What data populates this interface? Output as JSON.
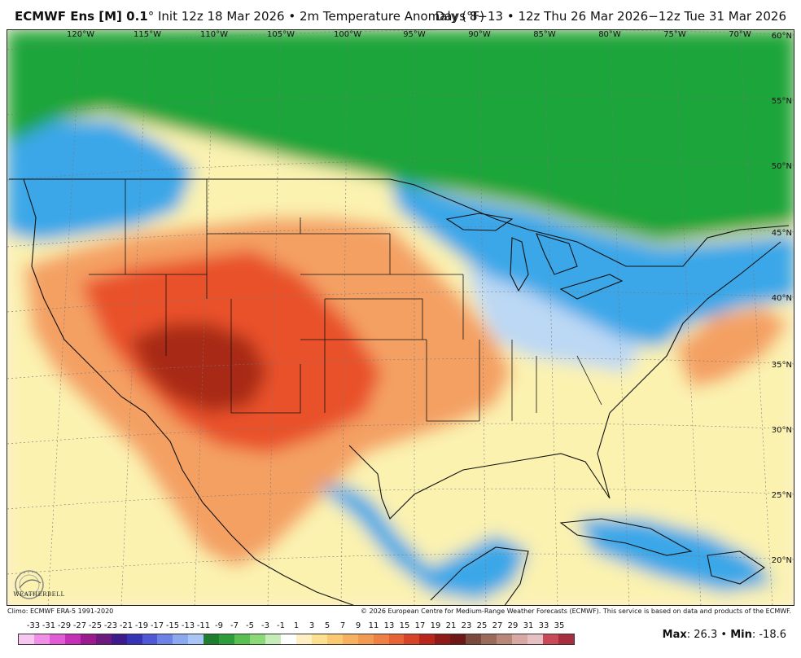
{
  "header": {
    "model": "ECMWF Ens [M] 0.1",
    "degree": "°",
    "init_label": "Init 12z 18 Mar 2026",
    "bullet": "•",
    "field": "2m Temperature Anomaly (°F)",
    "valid_period": "Days 8−13 • 12z Thu 26 Mar 2026−12z Tue 31 Mar 2026"
  },
  "map": {
    "longitude_labels": [
      "120°W",
      "115°W",
      "110°W",
      "105°W",
      "100°W",
      "95°W",
      "90°W",
      "85°W",
      "80°W",
      "75°W",
      "70°W"
    ],
    "latitude_labels": [
      "60°N",
      "55°N",
      "50°N",
      "45°N",
      "40°N",
      "35°N",
      "30°N",
      "25°N",
      "20°N"
    ],
    "colors": {
      "cold_strong": "#1fa53a",
      "cold": "#3aa7e8",
      "cold_light": "#bcd8f4",
      "neutral": "#fdf0d8",
      "warm_light": "#fbd59a",
      "warm": "#f4a064",
      "hot": "#e9512a",
      "hottest": "#a82a12",
      "ocean_warm": "#fbf2b0"
    }
  },
  "footer": {
    "climo": "Climo: ECMWF ERA-5 1991-2020",
    "copyright": "© 2026 European Centre for Medium-Range Weather Forecasts (ECMWF). This service is based on data and products of the ECMWF."
  },
  "legend": {
    "labels": [
      "-33",
      "-31",
      "-29",
      "-27",
      "-25",
      "-23",
      "-21",
      "-19",
      "-17",
      "-15",
      "-13",
      "-11",
      "-9",
      "-7",
      "-5",
      "-3",
      "-1",
      "1",
      "3",
      "5",
      "7",
      "9",
      "11",
      "13",
      "15",
      "17",
      "19",
      "21",
      "23",
      "25",
      "27",
      "29",
      "31",
      "33",
      "35"
    ],
    "colors": [
      "#f7c7f2",
      "#ef8fe6",
      "#e25bd6",
      "#c32fb5",
      "#9b1b8f",
      "#6d1a7f",
      "#3d1b8c",
      "#3434b4",
      "#4f58d6",
      "#6d82e4",
      "#8aa9ef",
      "#a9c6f6",
      "#1e7d2e",
      "#2d9c3b",
      "#59bf50",
      "#8cd97a",
      "#c5ecb9",
      "#ffffff",
      "#fff0c4",
      "#fde08f",
      "#fbc972",
      "#f8b160",
      "#f39a52",
      "#ed8042",
      "#e56334",
      "#d64427",
      "#b9271c",
      "#8e1b18",
      "#6d1816",
      "#7a4a3c",
      "#9a6b5a",
      "#b8877a",
      "#d8a9a2",
      "#e7c0c4",
      "#c84a58",
      "#a72e3e"
    ]
  },
  "stats": {
    "max_label": "Max",
    "max_value": "26.3",
    "min_label": "Min",
    "min_value": "-18.6",
    "sep": "•"
  },
  "logo": {
    "text": "WEATHERBELL"
  }
}
